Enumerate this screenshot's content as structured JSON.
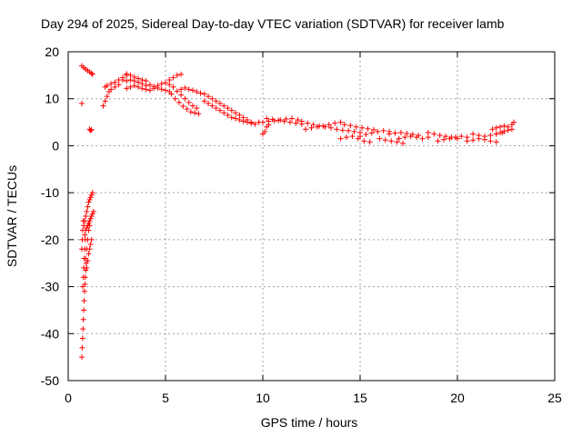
{
  "chart_data": {
    "type": "scatter",
    "title": "Day 294 of 2025, Sidereal Day-to-day VTEC variation (SDTVAR) for receiver lamb",
    "xlabel": "GPS time / hours",
    "ylabel": "SDTVAR / TECUs",
    "xlim": [
      0,
      25
    ],
    "ylim": [
      -50,
      20
    ],
    "xticks": [
      0,
      5,
      10,
      15,
      20,
      25
    ],
    "yticks": [
      -50,
      -40,
      -30,
      -20,
      -10,
      0,
      10,
      20
    ],
    "xtick_labels": [
      "0",
      "5",
      "10",
      "15",
      "20",
      "25"
    ],
    "ytick_labels": [
      "-50",
      "-40",
      "-30",
      "-20",
      "-10",
      "0",
      "10",
      "20"
    ],
    "grid": true,
    "marker": "+",
    "series": [
      {
        "name": "SDTVAR",
        "color": "#ff0000",
        "points": [
          [
            0.7,
            9.0
          ],
          [
            0.7,
            -45.0
          ],
          [
            0.72,
            -43.0
          ],
          [
            0.74,
            -41.0
          ],
          [
            0.76,
            -39.0
          ],
          [
            0.78,
            -37.0
          ],
          [
            0.8,
            -35.0
          ],
          [
            0.82,
            -33.0
          ],
          [
            0.84,
            -31.0
          ],
          [
            0.86,
            -29.5
          ],
          [
            0.88,
            -28.0
          ],
          [
            0.9,
            -26.5
          ],
          [
            0.92,
            -25.0
          ],
          [
            0.75,
            -30.0
          ],
          [
            0.78,
            -28.0
          ],
          [
            0.8,
            -26.0
          ],
          [
            0.82,
            -24.0
          ],
          [
            0.85,
            -22.0
          ],
          [
            0.88,
            -20.0
          ],
          [
            0.7,
            -22.0
          ],
          [
            0.72,
            -20.0
          ],
          [
            0.75,
            -18.0
          ],
          [
            0.78,
            -16.0
          ],
          [
            0.9,
            -24.0
          ],
          [
            0.95,
            -22.0
          ],
          [
            1.0,
            -20.0
          ],
          [
            1.05,
            -18.0
          ],
          [
            1.1,
            -17.0
          ],
          [
            0.95,
            -26.0
          ],
          [
            1.0,
            -24.5
          ],
          [
            1.05,
            -23.0
          ],
          [
            1.1,
            -22.0
          ],
          [
            1.15,
            -21.0
          ],
          [
            1.2,
            -20.0
          ],
          [
            0.8,
            -17.0
          ],
          [
            0.85,
            -16.0
          ],
          [
            0.9,
            -15.0
          ],
          [
            0.95,
            -14.0
          ],
          [
            1.0,
            -13.0
          ],
          [
            1.05,
            -12.0
          ],
          [
            1.1,
            -11.5
          ],
          [
            1.15,
            -11.0
          ],
          [
            1.2,
            -10.5
          ],
          [
            1.25,
            -10.0
          ],
          [
            0.85,
            -19.0
          ],
          [
            0.9,
            -18.0
          ],
          [
            0.95,
            -17.5
          ],
          [
            1.0,
            -17.0
          ],
          [
            1.05,
            -16.5
          ],
          [
            1.1,
            -16.0
          ],
          [
            1.15,
            -15.5
          ],
          [
            1.2,
            -15.0
          ],
          [
            1.25,
            -14.5
          ],
          [
            1.3,
            -14.0
          ],
          [
            0.7,
            17.0
          ],
          [
            0.8,
            16.6
          ],
          [
            0.9,
            16.3
          ],
          [
            1.0,
            16.0
          ],
          [
            1.1,
            15.7
          ],
          [
            1.2,
            15.4
          ],
          [
            1.25,
            15.2
          ],
          [
            1.1,
            3.5
          ],
          [
            1.15,
            3.2
          ],
          [
            1.2,
            3.4
          ],
          [
            1.8,
            8.5
          ],
          [
            1.9,
            9.5
          ],
          [
            2.0,
            10.5
          ],
          [
            2.1,
            11.5
          ],
          [
            2.2,
            12.0
          ],
          [
            2.4,
            12.5
          ],
          [
            2.6,
            13.0
          ],
          [
            2.8,
            14.0
          ],
          [
            1.9,
            12.5
          ],
          [
            2.0,
            12.8
          ],
          [
            2.2,
            13.2
          ],
          [
            2.4,
            13.5
          ],
          [
            2.6,
            14.0
          ],
          [
            2.8,
            14.5
          ],
          [
            3.0,
            15.0
          ],
          [
            3.0,
            15.3
          ],
          [
            3.2,
            15.0
          ],
          [
            3.4,
            14.6
          ],
          [
            3.6,
            14.3
          ],
          [
            3.8,
            14.0
          ],
          [
            4.0,
            13.8
          ],
          [
            3.0,
            13.8
          ],
          [
            3.2,
            14.0
          ],
          [
            3.4,
            13.8
          ],
          [
            3.6,
            13.5
          ],
          [
            3.8,
            13.2
          ],
          [
            4.0,
            12.8
          ],
          [
            3.0,
            12.2
          ],
          [
            3.2,
            12.5
          ],
          [
            3.4,
            12.8
          ],
          [
            3.6,
            12.5
          ],
          [
            3.8,
            12.2
          ],
          [
            4.0,
            12.0
          ],
          [
            4.2,
            13.0
          ],
          [
            4.4,
            12.6
          ],
          [
            4.6,
            12.3
          ],
          [
            4.8,
            12.0
          ],
          [
            5.0,
            11.8
          ],
          [
            5.2,
            11.5
          ],
          [
            4.2,
            11.8
          ],
          [
            4.4,
            12.2
          ],
          [
            4.6,
            12.8
          ],
          [
            4.8,
            13.2
          ],
          [
            5.0,
            13.4
          ],
          [
            5.2,
            13.0
          ],
          [
            5.2,
            14.0
          ],
          [
            5.4,
            14.5
          ],
          [
            5.6,
            15.0
          ],
          [
            5.8,
            15.2
          ],
          [
            5.3,
            11.0
          ],
          [
            5.5,
            10.0
          ],
          [
            5.7,
            9.2
          ],
          [
            5.9,
            8.4
          ],
          [
            6.1,
            7.8
          ],
          [
            6.3,
            7.2
          ],
          [
            6.5,
            7.0
          ],
          [
            6.7,
            6.8
          ],
          [
            5.4,
            12.5
          ],
          [
            5.6,
            11.6
          ],
          [
            5.8,
            10.8
          ],
          [
            6.0,
            10.0
          ],
          [
            6.2,
            9.2
          ],
          [
            6.4,
            8.5
          ],
          [
            6.6,
            8.0
          ],
          [
            5.8,
            12.0
          ],
          [
            6.0,
            12.3
          ],
          [
            6.2,
            12.0
          ],
          [
            6.4,
            11.8
          ],
          [
            6.6,
            11.5
          ],
          [
            6.8,
            11.2
          ],
          [
            7.0,
            11.0
          ],
          [
            7.2,
            10.5
          ],
          [
            7.4,
            10.0
          ],
          [
            7.6,
            9.5
          ],
          [
            7.8,
            9.0
          ],
          [
            8.0,
            8.5
          ],
          [
            7.0,
            9.5
          ],
          [
            7.2,
            9.0
          ],
          [
            7.4,
            8.5
          ],
          [
            7.6,
            8.0
          ],
          [
            7.8,
            7.5
          ],
          [
            8.0,
            7.0
          ],
          [
            8.2,
            6.5
          ],
          [
            8.2,
            8.0
          ],
          [
            8.4,
            7.5
          ],
          [
            8.6,
            7.0
          ],
          [
            8.8,
            6.5
          ],
          [
            9.0,
            6.0
          ],
          [
            9.2,
            5.5
          ],
          [
            9.4,
            5.0
          ],
          [
            8.4,
            6.0
          ],
          [
            8.6,
            5.8
          ],
          [
            8.8,
            5.5
          ],
          [
            9.0,
            5.2
          ],
          [
            9.2,
            5.0
          ],
          [
            9.4,
            4.8
          ],
          [
            9.6,
            4.6
          ],
          [
            9.8,
            5.0
          ],
          [
            10.0,
            2.5
          ],
          [
            10.1,
            3.0
          ],
          [
            10.2,
            4.0
          ],
          [
            10.3,
            4.5
          ],
          [
            10.0,
            5.0
          ],
          [
            10.3,
            5.2
          ],
          [
            10.6,
            5.3
          ],
          [
            10.9,
            5.5
          ],
          [
            11.2,
            5.7
          ],
          [
            11.5,
            5.8
          ],
          [
            11.8,
            5.5
          ],
          [
            10.2,
            5.8
          ],
          [
            10.5,
            5.6
          ],
          [
            10.8,
            5.4
          ],
          [
            11.1,
            5.2
          ],
          [
            11.4,
            5.0
          ],
          [
            11.7,
            4.8
          ],
          [
            12.0,
            4.6
          ],
          [
            12.0,
            5.2
          ],
          [
            12.3,
            4.8
          ],
          [
            12.6,
            4.5
          ],
          [
            12.9,
            4.2
          ],
          [
            13.2,
            4.0
          ],
          [
            13.5,
            3.8
          ],
          [
            12.2,
            3.5
          ],
          [
            12.5,
            3.8
          ],
          [
            12.8,
            4.0
          ],
          [
            13.1,
            4.2
          ],
          [
            13.4,
            4.5
          ],
          [
            13.7,
            4.8
          ],
          [
            14.0,
            5.0
          ],
          [
            13.8,
            3.5
          ],
          [
            14.1,
            3.3
          ],
          [
            14.4,
            3.2
          ],
          [
            14.7,
            3.0
          ],
          [
            15.0,
            2.8
          ],
          [
            14.2,
            4.5
          ],
          [
            14.5,
            4.3
          ],
          [
            14.8,
            4.0
          ],
          [
            15.1,
            3.8
          ],
          [
            15.4,
            3.6
          ],
          [
            15.7,
            3.4
          ],
          [
            14.0,
            1.5
          ],
          [
            14.3,
            1.8
          ],
          [
            14.6,
            2.0
          ],
          [
            14.9,
            1.5
          ],
          [
            15.2,
            1.0
          ],
          [
            15.5,
            0.8
          ],
          [
            15.0,
            2.0
          ],
          [
            15.3,
            2.4
          ],
          [
            15.6,
            2.7
          ],
          [
            15.9,
            3.0
          ],
          [
            16.2,
            3.2
          ],
          [
            16.5,
            3.0
          ],
          [
            16.0,
            1.5
          ],
          [
            16.3,
            1.2
          ],
          [
            16.6,
            1.0
          ],
          [
            16.9,
            0.8
          ],
          [
            17.2,
            0.5
          ],
          [
            16.5,
            2.5
          ],
          [
            16.8,
            2.7
          ],
          [
            17.1,
            2.8
          ],
          [
            17.4,
            2.6
          ],
          [
            17.7,
            2.4
          ],
          [
            18.0,
            2.2
          ],
          [
            17.0,
            1.5
          ],
          [
            17.3,
            1.8
          ],
          [
            17.6,
            2.0
          ],
          [
            17.9,
            1.8
          ],
          [
            18.2,
            1.5
          ],
          [
            18.5,
            1.8
          ],
          [
            18.5,
            2.8
          ],
          [
            18.8,
            2.5
          ],
          [
            19.1,
            2.2
          ],
          [
            19.4,
            2.0
          ],
          [
            19.7,
            1.8
          ],
          [
            20.0,
            1.5
          ],
          [
            19.0,
            1.0
          ],
          [
            19.3,
            1.3
          ],
          [
            19.6,
            1.5
          ],
          [
            19.9,
            1.8
          ],
          [
            20.2,
            2.0
          ],
          [
            20.5,
            1.8
          ],
          [
            20.5,
            1.0
          ],
          [
            20.8,
            1.2
          ],
          [
            21.1,
            1.5
          ],
          [
            21.4,
            1.3
          ],
          [
            21.7,
            1.0
          ],
          [
            22.0,
            0.8
          ],
          [
            20.8,
            2.5
          ],
          [
            21.1,
            2.2
          ],
          [
            21.4,
            2.0
          ],
          [
            21.7,
            2.2
          ],
          [
            22.0,
            2.5
          ],
          [
            22.3,
            2.8
          ],
          [
            21.8,
            3.5
          ],
          [
            22.0,
            3.8
          ],
          [
            22.2,
            4.0
          ],
          [
            22.4,
            4.2
          ],
          [
            22.6,
            4.0
          ],
          [
            22.0,
            2.5
          ],
          [
            22.2,
            2.8
          ],
          [
            22.4,
            3.0
          ],
          [
            22.6,
            3.3
          ],
          [
            22.8,
            3.5
          ],
          [
            22.8,
            4.5
          ],
          [
            22.9,
            5.0
          ]
        ]
      }
    ]
  }
}
